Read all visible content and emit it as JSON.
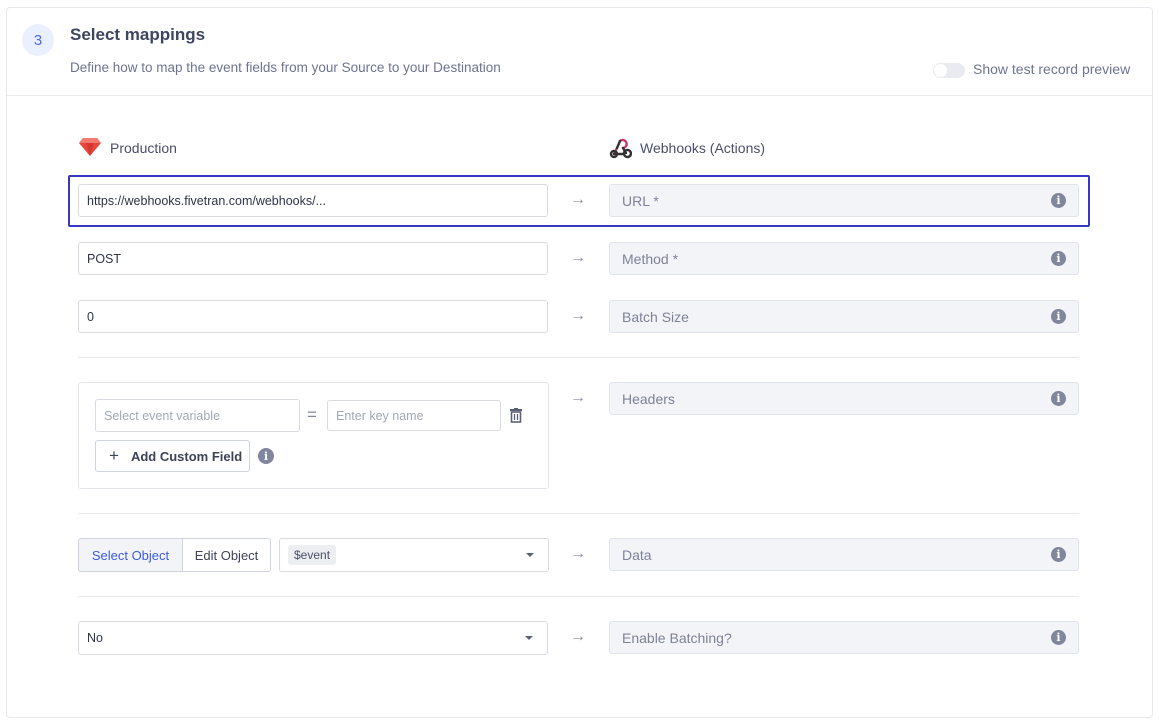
{
  "header": {
    "step": "3",
    "title": "Select mappings",
    "subtitle": "Define how to map the event fields from your Source to your Destination",
    "toggle_label": "Show test record preview",
    "toggle_on": false
  },
  "source": {
    "name": "Production",
    "icon": "ruby-gem-icon"
  },
  "destination": {
    "name": "Webhooks (Actions)",
    "icon": "webhooks-icon"
  },
  "rows": [
    {
      "source_value": "https://webhooks.fivetran.com/webhooks/...",
      "dest_label": "URL *"
    },
    {
      "source_value": "POST",
      "dest_label": "Method *"
    },
    {
      "source_value": "0",
      "dest_label": "Batch Size"
    }
  ],
  "headers": {
    "variable_placeholder": "Select event variable",
    "key_placeholder": "Enter key name",
    "add_label": "Add Custom Field",
    "dest_label": "Headers"
  },
  "data": {
    "select_object": "Select Object",
    "edit_object": "Edit Object",
    "value": "$event",
    "dest_label": "Data"
  },
  "batching": {
    "value": "No",
    "dest_label": "Enable Batching?"
  },
  "colors": {
    "highlight": "#3a36c4",
    "accent": "#4a6cf0"
  }
}
